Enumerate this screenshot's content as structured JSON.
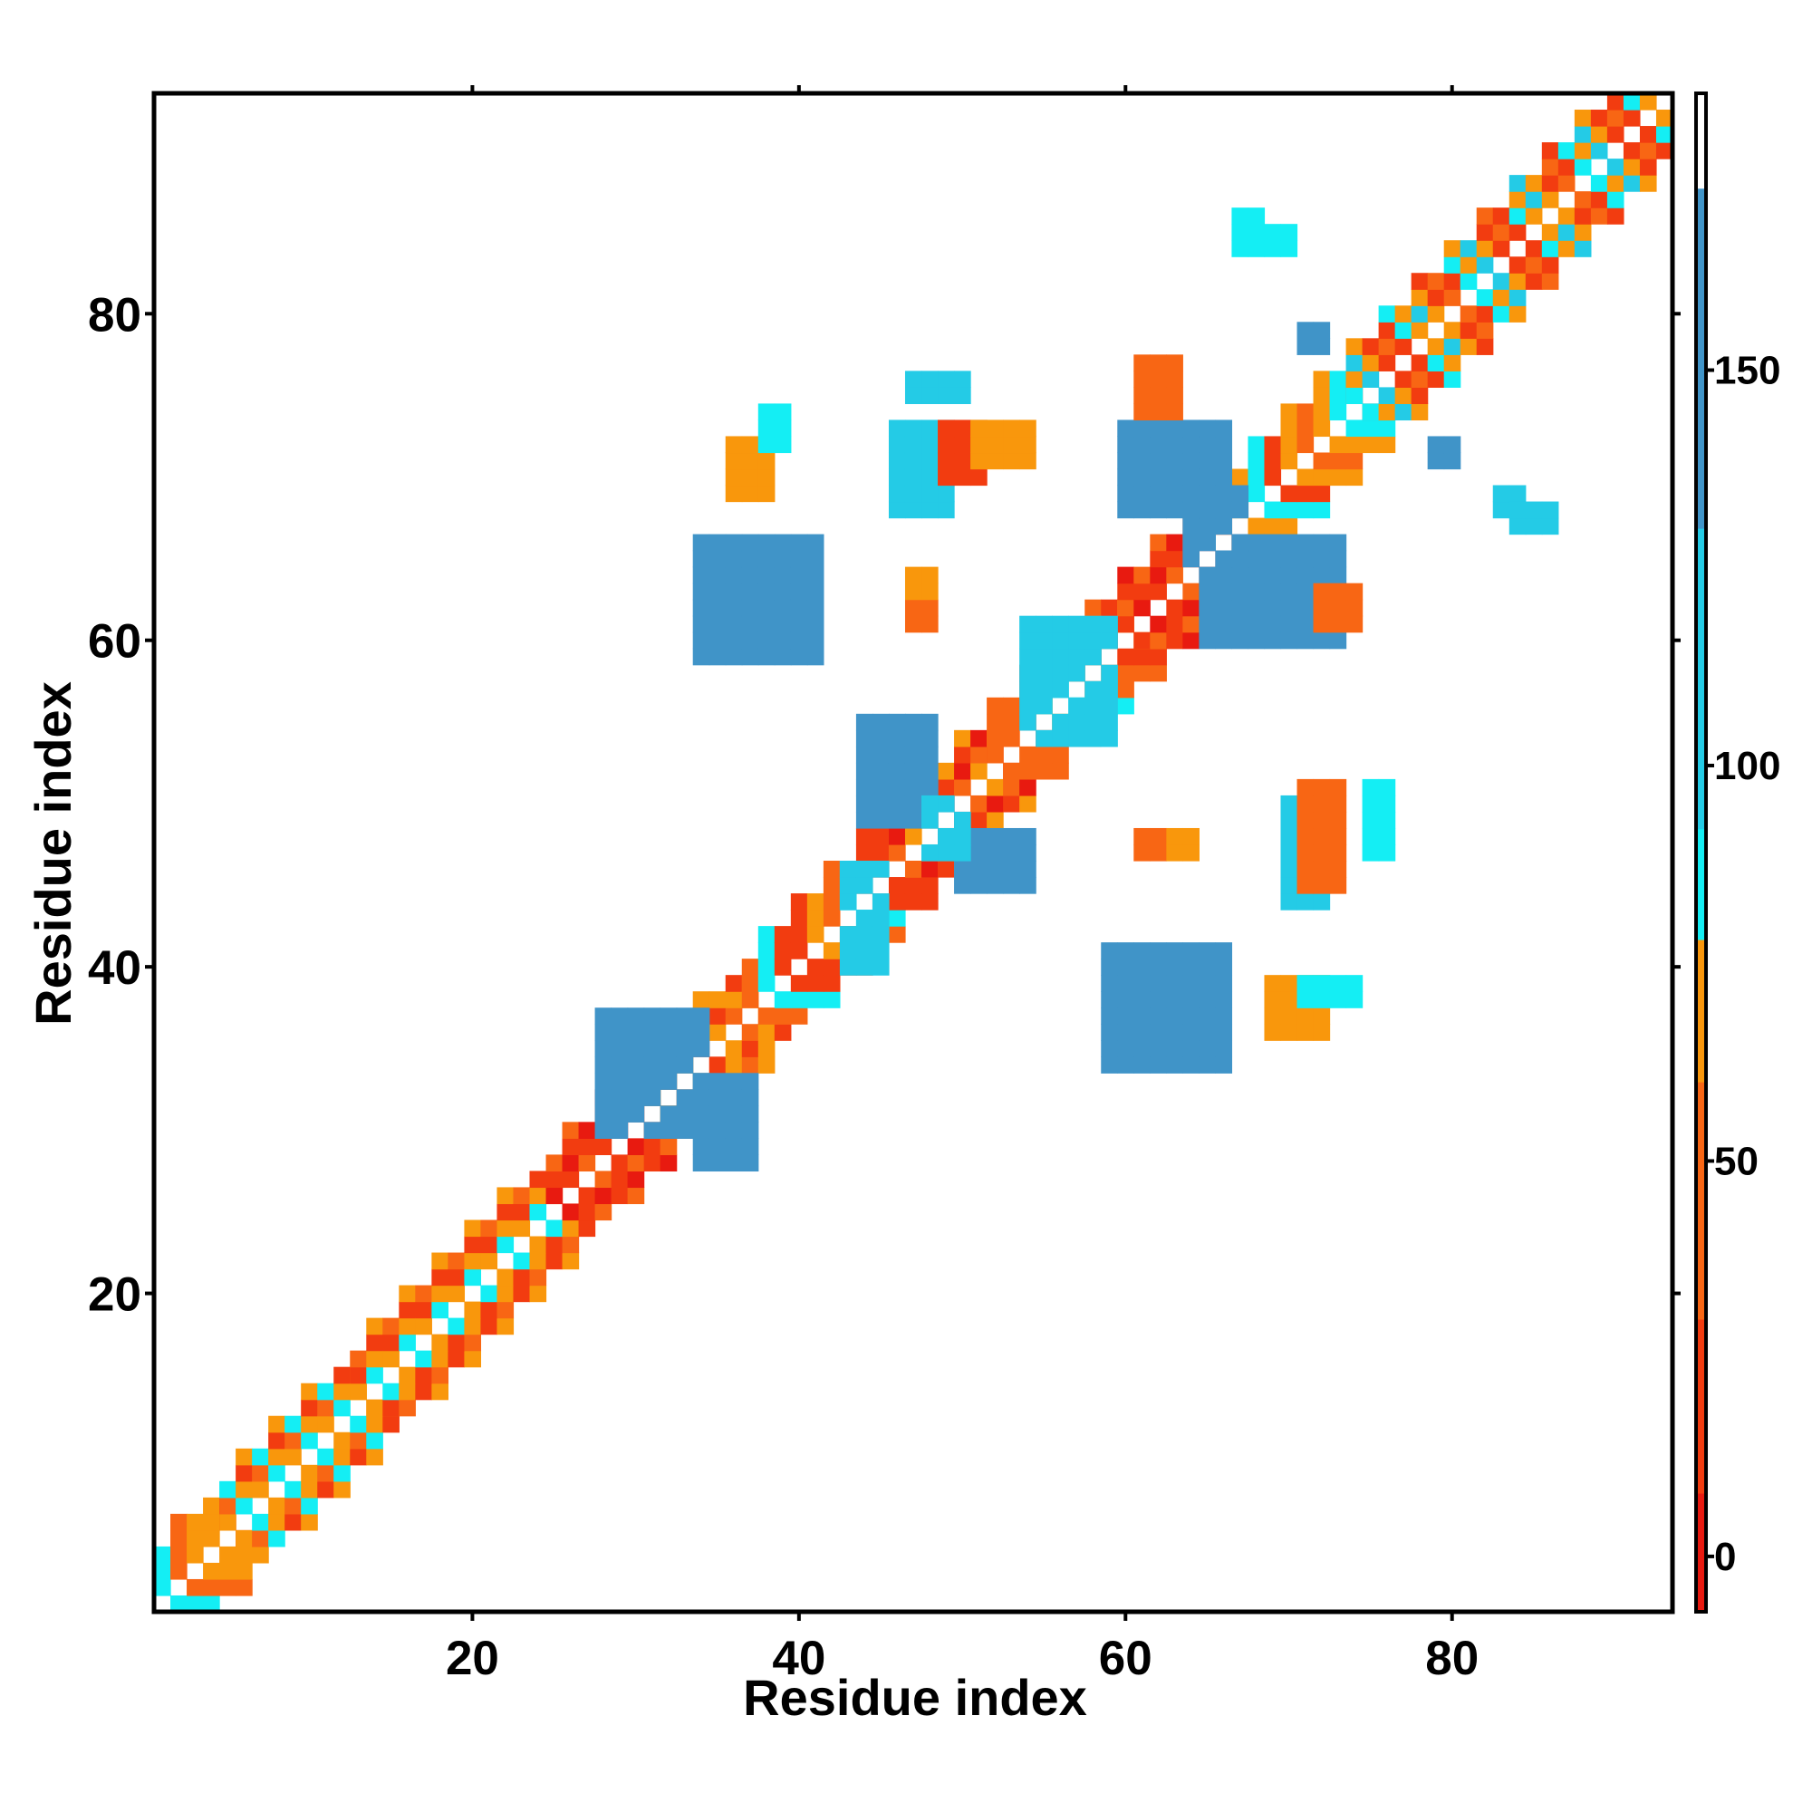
{
  "chart_data": {
    "type": "heatmap",
    "title": "",
    "xlabel": "Residue index",
    "ylabel": "Residue index",
    "n_residues": 93,
    "xlim": [
      0.5,
      93.5
    ],
    "ylim": [
      0.5,
      93.5
    ],
    "x_ticks": [
      20,
      40,
      60,
      80
    ],
    "y_ticks": [
      20,
      40,
      60,
      80
    ],
    "colorbar": {
      "range": [
        -7,
        185
      ],
      "ticks": [
        0,
        50,
        100,
        150
      ],
      "segments": [
        {
          "from": -7,
          "to": 8,
          "color": "#e81a10"
        },
        {
          "from": 8,
          "to": 30,
          "color": "#f23c10"
        },
        {
          "from": 30,
          "to": 60,
          "color": "#f86614"
        },
        {
          "from": 60,
          "to": 78,
          "color": "#f9970c"
        },
        {
          "from": 78,
          "to": 92,
          "color": "#14eef4"
        },
        {
          "from": 92,
          "to": 130,
          "color": "#24cbe6"
        },
        {
          "from": 130,
          "to": 173,
          "color": "#4094c8"
        },
        {
          "from": 173,
          "to": 185,
          "color": "#ffffff"
        }
      ]
    },
    "diagonal_bands": [
      {
        "from": 1,
        "to": 5,
        "values": [
          0,
          45,
          70,
          85,
          60
        ]
      },
      {
        "from": 5,
        "to": 13,
        "values": [
          85,
          50,
          70,
          15,
          60,
          90
        ]
      },
      {
        "from": 13,
        "to": 25,
        "values": [
          50,
          20,
          70,
          15,
          60,
          88
        ]
      },
      {
        "from": 25,
        "to": 31,
        "values": [
          5,
          20,
          40,
          10
        ]
      },
      {
        "from": 31,
        "to": 37,
        "values": [
          70,
          50,
          60,
          20
        ]
      },
      {
        "from": 37,
        "to": 46,
        "values": [
          10,
          40,
          20,
          60,
          88
        ]
      },
      {
        "from": 46,
        "to": 52,
        "values": [
          5,
          20,
          60,
          40
        ]
      },
      {
        "from": 52,
        "to": 60,
        "values": [
          60,
          40,
          10,
          88,
          50
        ]
      },
      {
        "from": 60,
        "to": 66,
        "values": [
          5,
          20,
          40,
          10
        ]
      },
      {
        "from": 66,
        "to": 74,
        "values": [
          60,
          70,
          20,
          40,
          90
        ]
      },
      {
        "from": 74,
        "to": 93,
        "values": [
          40,
          60,
          20,
          88,
          70,
          10,
          100
        ]
      }
    ],
    "off_diagonal_blocks": [
      {
        "x": [
          28,
          34
        ],
        "y": [
          30,
          37
        ],
        "value": 150
      },
      {
        "x": [
          34,
          37
        ],
        "y": [
          28,
          33
        ],
        "value": 140
      },
      {
        "x": [
          44,
          48
        ],
        "y": [
          49,
          55
        ],
        "value": 150
      },
      {
        "x": [
          50,
          54
        ],
        "y": [
          45,
          48
        ],
        "value": 155
      },
      {
        "x": [
          48,
          50
        ],
        "y": [
          47,
          50
        ],
        "value": 120
      },
      {
        "x": [
          43,
          45
        ],
        "y": [
          40,
          46
        ],
        "value": 95
      },
      {
        "x": [
          34,
          41
        ],
        "y": [
          59,
          66
        ],
        "value": 135
      },
      {
        "x": [
          59,
          66
        ],
        "y": [
          34,
          41
        ],
        "value": 135
      },
      {
        "x": [
          54,
          59
        ],
        "y": [
          54,
          61
        ],
        "value": 110
      },
      {
        "x": [
          60,
          66
        ],
        "y": [
          68,
          73
        ],
        "value": 130
      },
      {
        "x": [
          65,
          73
        ],
        "y": [
          60,
          66
        ],
        "value": 140
      },
      {
        "x": [
          64,
          67
        ],
        "y": [
          65,
          69
        ],
        "value": 165
      },
      {
        "x": [
          46,
          49
        ],
        "y": [
          68,
          73
        ],
        "value": 100
      },
      {
        "x": [
          49,
          51
        ],
        "y": [
          70,
          73
        ],
        "value": 20
      },
      {
        "x": [
          51,
          54
        ],
        "y": [
          71,
          73
        ],
        "value": 65
      },
      {
        "x": [
          47,
          50
        ],
        "y": [
          75,
          76
        ],
        "value": 110
      },
      {
        "x": [
          36,
          38
        ],
        "y": [
          69,
          72
        ],
        "value": 60
      },
      {
        "x": [
          38,
          39
        ],
        "y": [
          72,
          74
        ],
        "value": 88
      },
      {
        "x": [
          61,
          63
        ],
        "y": [
          74,
          77
        ],
        "value": 30
      },
      {
        "x": [
          70,
          72
        ],
        "y": [
          44,
          50
        ],
        "value": 100
      },
      {
        "x": [
          71,
          73
        ],
        "y": [
          45,
          51
        ],
        "value": 55
      },
      {
        "x": [
          69,
          72
        ],
        "y": [
          36,
          39
        ],
        "value": 65
      },
      {
        "x": [
          71,
          74
        ],
        "y": [
          38,
          39
        ],
        "value": 90
      },
      {
        "x": [
          72,
          74
        ],
        "y": [
          61,
          63
        ],
        "value": 30
      },
      {
        "x": [
          67,
          68
        ],
        "y": [
          84,
          86
        ],
        "value": 85
      },
      {
        "x": [
          69,
          70
        ],
        "y": [
          84,
          85
        ],
        "value": 90
      },
      {
        "x": [
          71,
          72
        ],
        "y": [
          78,
          79
        ],
        "value": 150
      },
      {
        "x": [
          79,
          80
        ],
        "y": [
          71,
          72
        ],
        "value": 145
      },
      {
        "x": [
          83,
          84
        ],
        "y": [
          68,
          69
        ],
        "value": 95
      },
      {
        "x": [
          84,
          86
        ],
        "y": [
          67,
          68
        ],
        "value": 100
      },
      {
        "x": [
          47,
          48
        ],
        "y": [
          61,
          62
        ],
        "value": 55
      },
      {
        "x": [
          47,
          48
        ],
        "y": [
          63,
          64
        ],
        "value": 60
      },
      {
        "x": [
          61,
          62
        ],
        "y": [
          47,
          48
        ],
        "value": 45
      },
      {
        "x": [
          63,
          64
        ],
        "y": [
          47,
          48
        ],
        "value": 60
      },
      {
        "x": [
          75,
          76
        ],
        "y": [
          47,
          51
        ],
        "value": 85
      }
    ]
  }
}
